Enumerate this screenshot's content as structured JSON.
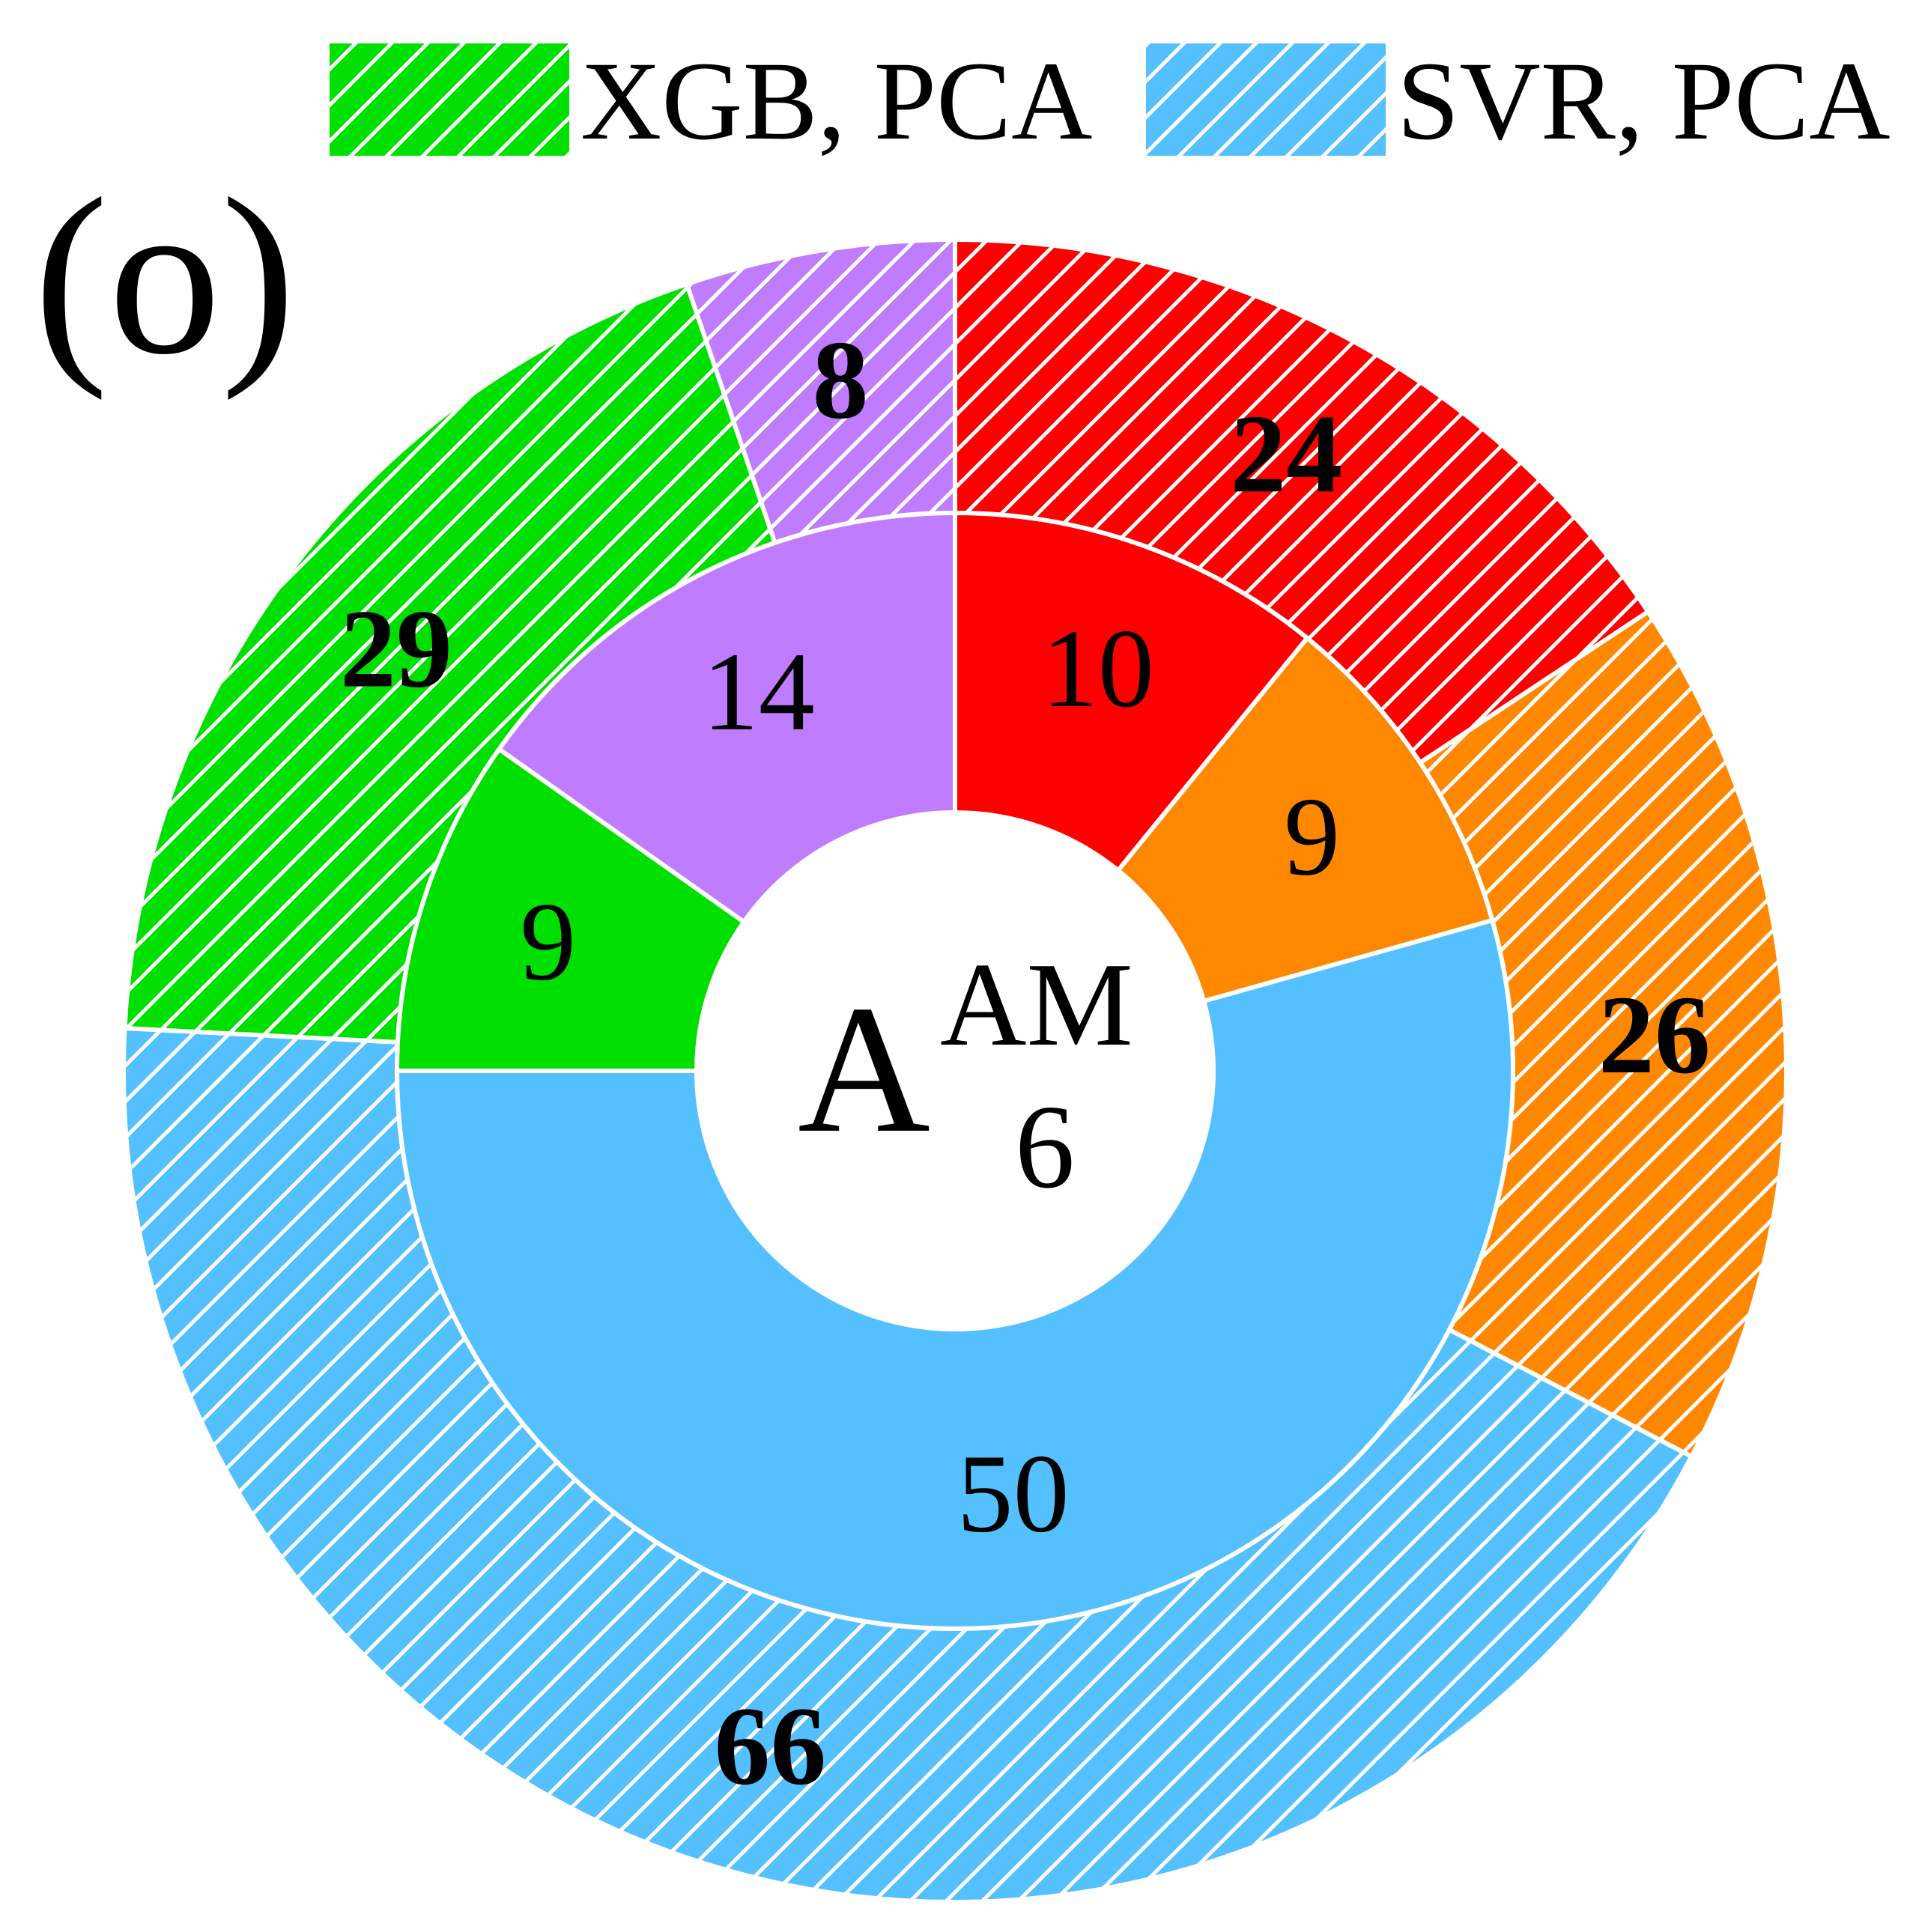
{
  "panel_label": "(o)",
  "center": {
    "main": "A",
    "sup": "AM",
    "sub": "6"
  },
  "colors": {
    "red": "#ff0000",
    "orange": "#ff8800",
    "blue": "#55c0ff",
    "green": "#00e000",
    "purple": "#c07cff",
    "separator": "#ffffff",
    "text": "#000000"
  },
  "chart_data": {
    "type": "pie",
    "subtype": "nested-donut",
    "legend": [
      {
        "label": "XGB, PCA",
        "color": "#00e000",
        "pattern": "hatch"
      },
      {
        "label": "SVR, PCA",
        "color": "#55c0ff",
        "pattern": "hatch"
      }
    ],
    "legend_position": "top",
    "inner_ring": [
      {
        "value": 10,
        "label": "10",
        "color": "#ff0000"
      },
      {
        "value": 9,
        "label": "9",
        "color": "#ff8800"
      },
      {
        "value": 50,
        "label": "50",
        "color": "#55c0ff"
      },
      {
        "value": 9,
        "label": "9",
        "color": "#00e000"
      },
      {
        "value": 14,
        "label": "14",
        "color": "#c07cff"
      }
    ],
    "outer_ring": [
      {
        "value": 24,
        "label": "24",
        "color": "#ff0000"
      },
      {
        "value": 26,
        "label": "26",
        "color": "#ff8800"
      },
      {
        "value": 66,
        "label": "66",
        "color": "#55c0ff"
      },
      {
        "value": 29,
        "label": "29",
        "color": "#00e000"
      },
      {
        "value": 8,
        "label": "8",
        "color": "#c07cff"
      }
    ],
    "start_angle": "12 o'clock",
    "direction": "clockwise"
  }
}
